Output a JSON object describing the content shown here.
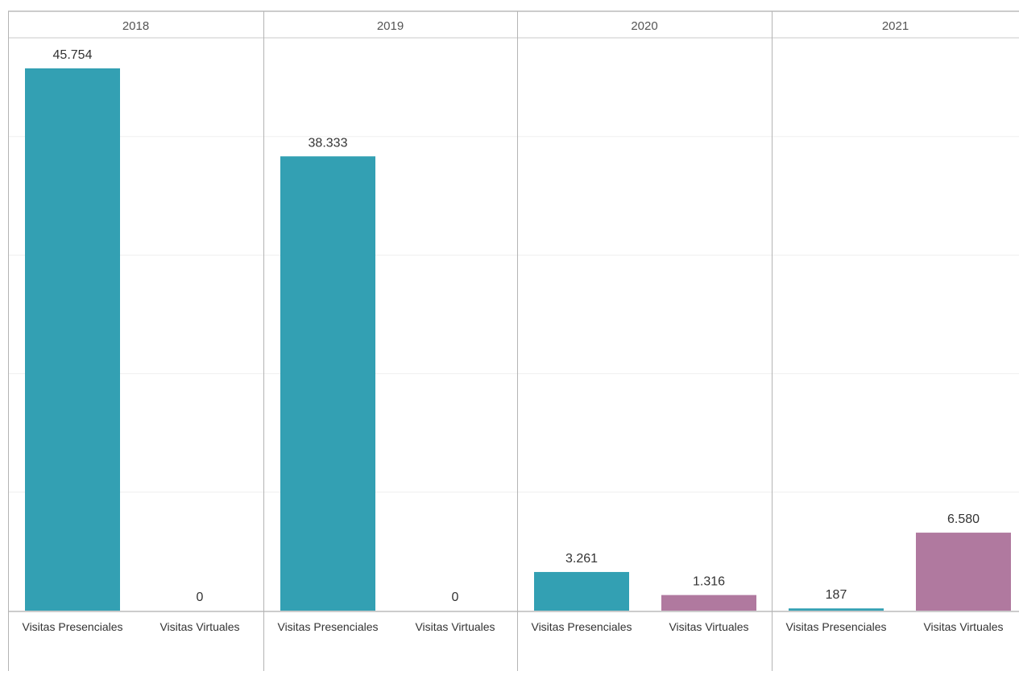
{
  "chart_data": {
    "type": "bar",
    "layout": "small-multiples",
    "title": "",
    "xlabel": "",
    "ylabel": "",
    "ylim": [
      0,
      50000
    ],
    "grid": true,
    "legend": "none",
    "panels": [
      {
        "label": "2018",
        "categories": [
          "Visitas Presenciales",
          "Visitas Virtuales"
        ],
        "values": [
          45754,
          0
        ],
        "value_labels": [
          "45.754",
          "0"
        ]
      },
      {
        "label": "2019",
        "categories": [
          "Visitas Presenciales",
          "Visitas Virtuales"
        ],
        "values": [
          38333,
          0
        ],
        "value_labels": [
          "38.333",
          "0"
        ]
      },
      {
        "label": "2020",
        "categories": [
          "Visitas Presenciales",
          "Visitas Virtuales"
        ],
        "values": [
          3261,
          1316
        ],
        "value_labels": [
          "3.261",
          "1.316"
        ]
      },
      {
        "label": "2021",
        "categories": [
          "Visitas Presenciales",
          "Visitas Virtuales"
        ],
        "values": [
          187,
          6580
        ],
        "value_labels": [
          "187",
          "6.580"
        ]
      }
    ],
    "colors": {
      "Visitas Presenciales": "#33a0b3",
      "Visitas Virtuales": "#b0799f"
    }
  }
}
